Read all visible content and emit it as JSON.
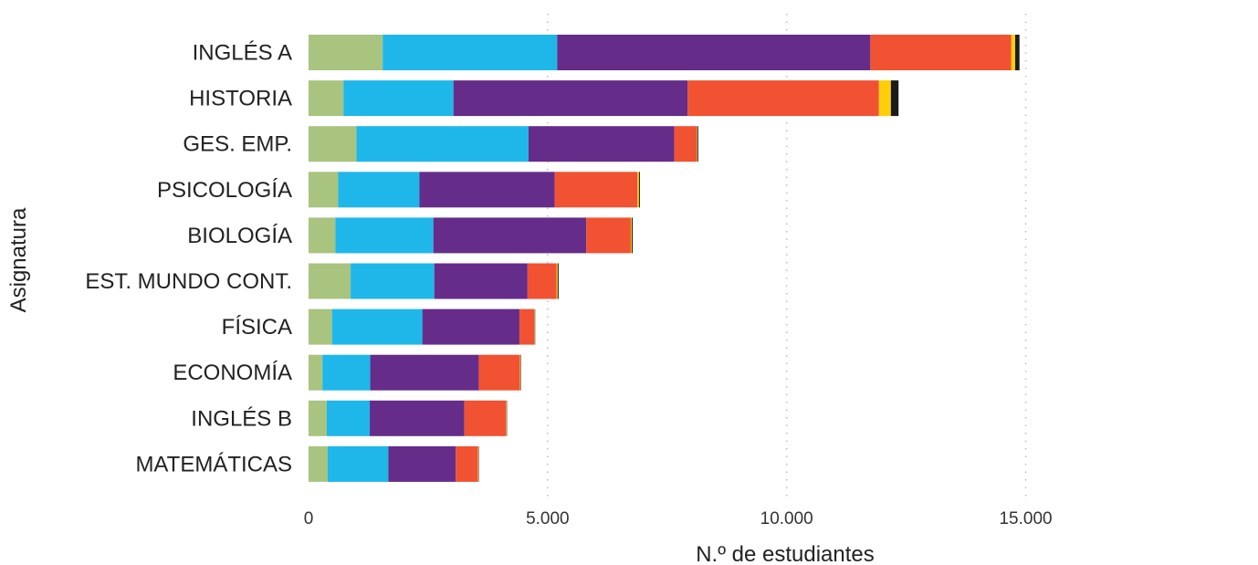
{
  "chart_data": {
    "type": "bar",
    "orientation": "horizontal",
    "stacked": true,
    "title": "",
    "xlabel": "N.º de estudiantes",
    "ylabel": "Asignatura",
    "xlim": [
      0,
      15600
    ],
    "x_ticks": [
      0,
      5000,
      10000,
      15000
    ],
    "x_tick_labels": [
      "0",
      "5.000",
      "10.000",
      "15.000"
    ],
    "grid": "vertical dotted",
    "legend": "none",
    "categories": [
      "INGLÉS A",
      "HISTORIA",
      "GES. EMP.",
      "PSICOLOGÍA",
      "BIOLOGÍA",
      "EST. MUNDO CONT.",
      "FÍSICA",
      "ECONOMÍA",
      "INGLÉS B",
      "MATEMÁTICAS"
    ],
    "series": [
      {
        "color": "#a8c47f",
        "values": [
          1550,
          730,
          1000,
          620,
          560,
          880,
          490,
          290,
          380,
          400
        ]
      },
      {
        "color": "#1fb7ea",
        "values": [
          3650,
          2300,
          3600,
          1700,
          2050,
          1750,
          1890,
          1000,
          900,
          1270
        ]
      },
      {
        "color": "#652d89",
        "values": [
          6550,
          4900,
          3050,
          2830,
          3200,
          1950,
          2030,
          2270,
          1980,
          1410
        ]
      },
      {
        "color": "#f15232",
        "values": [
          2950,
          4000,
          470,
          1730,
          930,
          610,
          310,
          860,
          870,
          460
        ]
      },
      {
        "color": "#fdcf0a",
        "values": [
          80,
          250,
          10,
          30,
          20,
          20,
          10,
          10,
          10,
          10
        ]
      },
      {
        "color": "#1b1b1b",
        "values": [
          90,
          160,
          20,
          20,
          20,
          20,
          10,
          10,
          10,
          10
        ]
      }
    ]
  }
}
